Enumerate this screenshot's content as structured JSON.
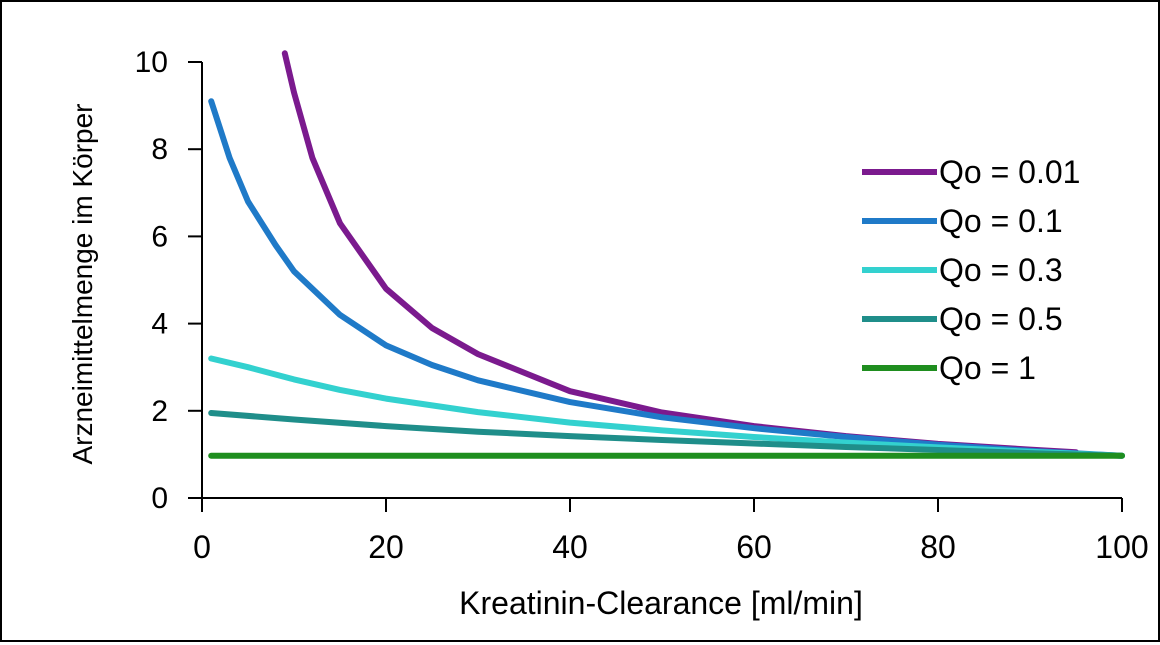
{
  "chart_data": {
    "type": "line",
    "title": "",
    "xlabel": "Kreatinin-Clearance [ml/min]",
    "ylabel": "Arzneimittelmenge im Körper",
    "xlim": [
      0,
      100
    ],
    "ylim": [
      0,
      10
    ],
    "x_ticks": [
      0,
      20,
      40,
      60,
      80,
      100
    ],
    "y_ticks": [
      0,
      2,
      4,
      6,
      8,
      10
    ],
    "grid": false,
    "legend_position": "right",
    "series": [
      {
        "name": "Qo = 0.01",
        "color": "#7b1a8e",
        "x": [
          9,
          10,
          12,
          15,
          20,
          25,
          30,
          40,
          50,
          60,
          70,
          80,
          90,
          95
        ],
        "y": [
          10.2,
          9.3,
          7.8,
          6.3,
          4.8,
          3.9,
          3.3,
          2.45,
          1.96,
          1.65,
          1.42,
          1.24,
          1.11,
          1.05
        ]
      },
      {
        "name": "Qo = 0.1",
        "color": "#1f7ac8",
        "x": [
          1,
          3,
          5,
          8,
          10,
          15,
          20,
          25,
          30,
          40,
          50,
          60,
          70,
          80,
          90,
          100
        ],
        "y": [
          9.1,
          7.8,
          6.8,
          5.8,
          5.2,
          4.2,
          3.5,
          3.05,
          2.7,
          2.2,
          1.85,
          1.6,
          1.4,
          1.22,
          1.08,
          0.97
        ]
      },
      {
        "name": "Qo = 0.3",
        "color": "#33d1cf",
        "x": [
          1,
          5,
          10,
          15,
          20,
          30,
          40,
          50,
          60,
          70,
          80,
          90,
          100
        ],
        "y": [
          3.2,
          3.0,
          2.72,
          2.48,
          2.28,
          1.97,
          1.73,
          1.55,
          1.4,
          1.27,
          1.16,
          1.06,
          0.97
        ]
      },
      {
        "name": "Qo = 0.5",
        "color": "#1f8e8a",
        "x": [
          1,
          10,
          20,
          30,
          40,
          50,
          60,
          70,
          80,
          90,
          100
        ],
        "y": [
          1.95,
          1.8,
          1.65,
          1.52,
          1.42,
          1.33,
          1.25,
          1.17,
          1.1,
          1.03,
          0.97
        ]
      },
      {
        "name": "Qo = 1",
        "color": "#1f8e1f",
        "x": [
          1,
          100
        ],
        "y": [
          0.97,
          0.97
        ]
      }
    ]
  }
}
